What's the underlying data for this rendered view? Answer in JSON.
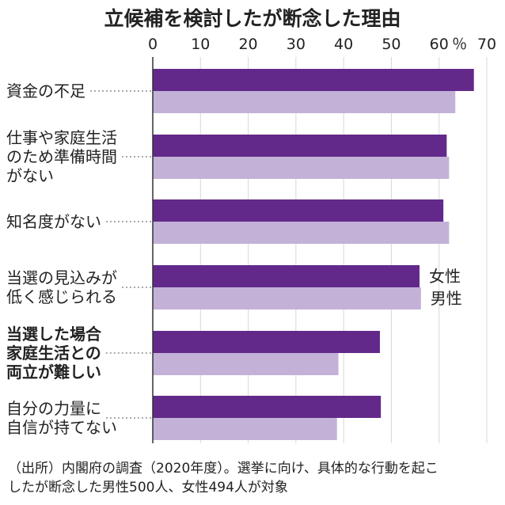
{
  "chart_data": {
    "type": "bar",
    "title": "立候補を検討したが断念した理由",
    "unit": "％",
    "xlim": [
      0,
      70
    ],
    "ticks": [
      "0",
      "10",
      "20",
      "30",
      "40",
      "50",
      "60",
      "70"
    ],
    "grid": true,
    "legend_placement": "inline-right",
    "categories": [
      [
        "資金の不足"
      ],
      [
        "仕事や家庭生活",
        "のため準備時間",
        "がない"
      ],
      [
        "知名度がない"
      ],
      [
        "当選の見込みが",
        "低く感じられる"
      ],
      [
        "当選した場合",
        "家庭生活との",
        "両立が難しい"
      ],
      [
        "自分の力量に",
        "自信が持てない"
      ]
    ],
    "bold_categories": [
      4
    ],
    "series": [
      {
        "name": "女性",
        "color": "#62298a",
        "values": [
          67.3,
          61.6,
          60.9,
          55.9,
          47.6,
          47.8
        ]
      },
      {
        "name": "男性",
        "color": "#c3b1d8",
        "values": [
          63.4,
          62.1,
          62.1,
          56.2,
          38.9,
          38.6
        ]
      }
    ]
  },
  "source_lines": [
    "（出所）内閣府の調査（2020年度）。選挙に向け、具体的な行動を起こ",
    "したが断念した男性500人、女性494人が対象"
  ]
}
